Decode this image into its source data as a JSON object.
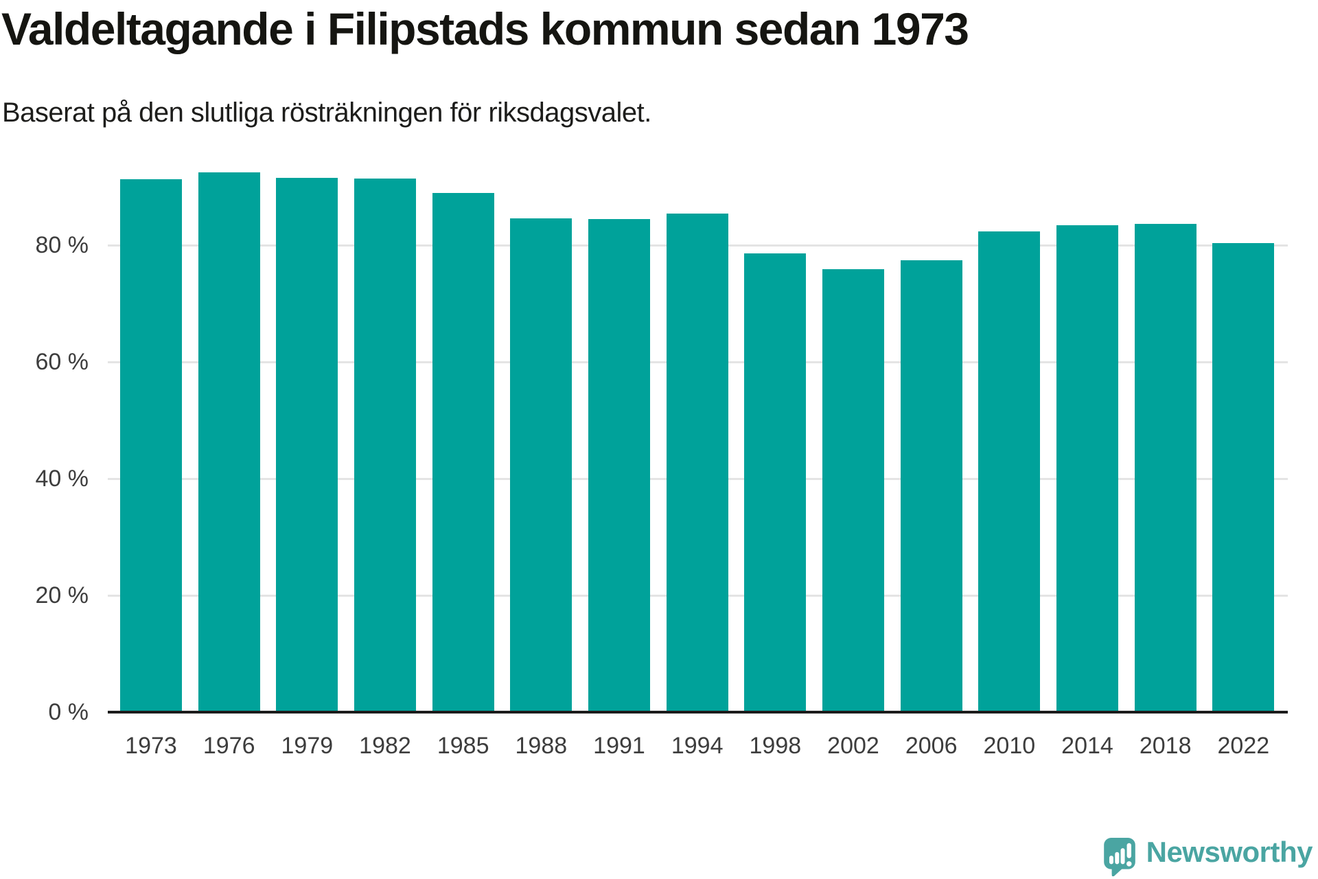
{
  "header": {
    "title": "Valdeltagande i Filipstads kommun sedan 1973",
    "subtitle": "Baserat på den slutliga rösträkningen för riksdagsvalet."
  },
  "chart_data": {
    "type": "bar",
    "title": "Valdeltagande i Filipstads kommun sedan 1973",
    "subtitle": "Baserat på den slutliga rösträkningen för riksdagsvalet.",
    "categories": [
      "1973",
      "1976",
      "1979",
      "1982",
      "1985",
      "1988",
      "1991",
      "1994",
      "1998",
      "2002",
      "2006",
      "2010",
      "2014",
      "2018",
      "2022"
    ],
    "values": [
      91.3,
      92.5,
      91.5,
      91.4,
      89.0,
      84.6,
      84.5,
      85.4,
      78.6,
      75.9,
      77.4,
      82.4,
      83.4,
      83.6,
      80.4
    ],
    "unit": "%",
    "xlabel": "",
    "ylabel": "",
    "ylim": [
      0,
      100
    ],
    "yticks": [
      {
        "value": 0,
        "label": "0 %"
      },
      {
        "value": 20,
        "label": "20 %"
      },
      {
        "value": 40,
        "label": "40 %"
      },
      {
        "value": 60,
        "label": "60 %"
      },
      {
        "value": 80,
        "label": "80 %"
      }
    ],
    "grid": true,
    "legend_position": "none",
    "bar_color": "#00a29a"
  },
  "branding": {
    "logo_text": "Newsworthy",
    "logo_color": "#4aa5a2",
    "logo_icon": "newsworthy-chart-speech-bubble-icon"
  }
}
